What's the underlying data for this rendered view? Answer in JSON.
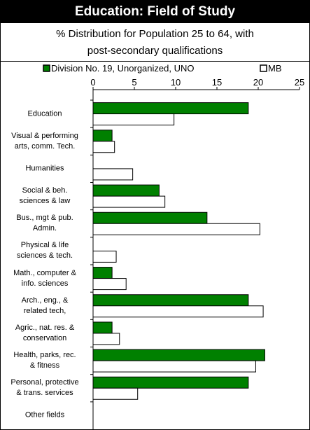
{
  "chart_data": {
    "type": "barh",
    "title": "Education: Field of Study",
    "subtitle": "% Distribution for Population 25 to 64, with\npost-secondary qualifications",
    "categories": [
      "Education",
      "Visual & performing\narts, comm. Tech.",
      "Humanities",
      "Social & beh.\nsciences & law",
      "Bus., mgt & pub.\nAdmin.",
      "Physical & life\nsciences & tech.",
      "Math., computer &\ninfo. sciences",
      "Arch., eng., &\nrelated tech,",
      "Agric., nat. res. &\nconservation",
      "Health, parks, rec.\n& fitness",
      "Personal, protective\n& trans. services",
      "Other fields"
    ],
    "series": [
      {
        "name": "Division No. 19, Unorganized, UNO",
        "color": "#008000",
        "values": [
          18.8,
          2.3,
          0,
          8.0,
          13.8,
          0,
          2.3,
          18.8,
          2.3,
          20.8,
          18.8,
          0
        ]
      },
      {
        "name": "MB",
        "color": "#ffffff",
        "values": [
          9.8,
          2.6,
          4.8,
          8.7,
          20.2,
          2.8,
          4.0,
          20.6,
          3.2,
          19.7,
          5.4,
          0
        ]
      }
    ],
    "xlim": [
      0,
      25
    ],
    "xticks": [
      0,
      5,
      10,
      15,
      20,
      25
    ],
    "legend": "top"
  }
}
